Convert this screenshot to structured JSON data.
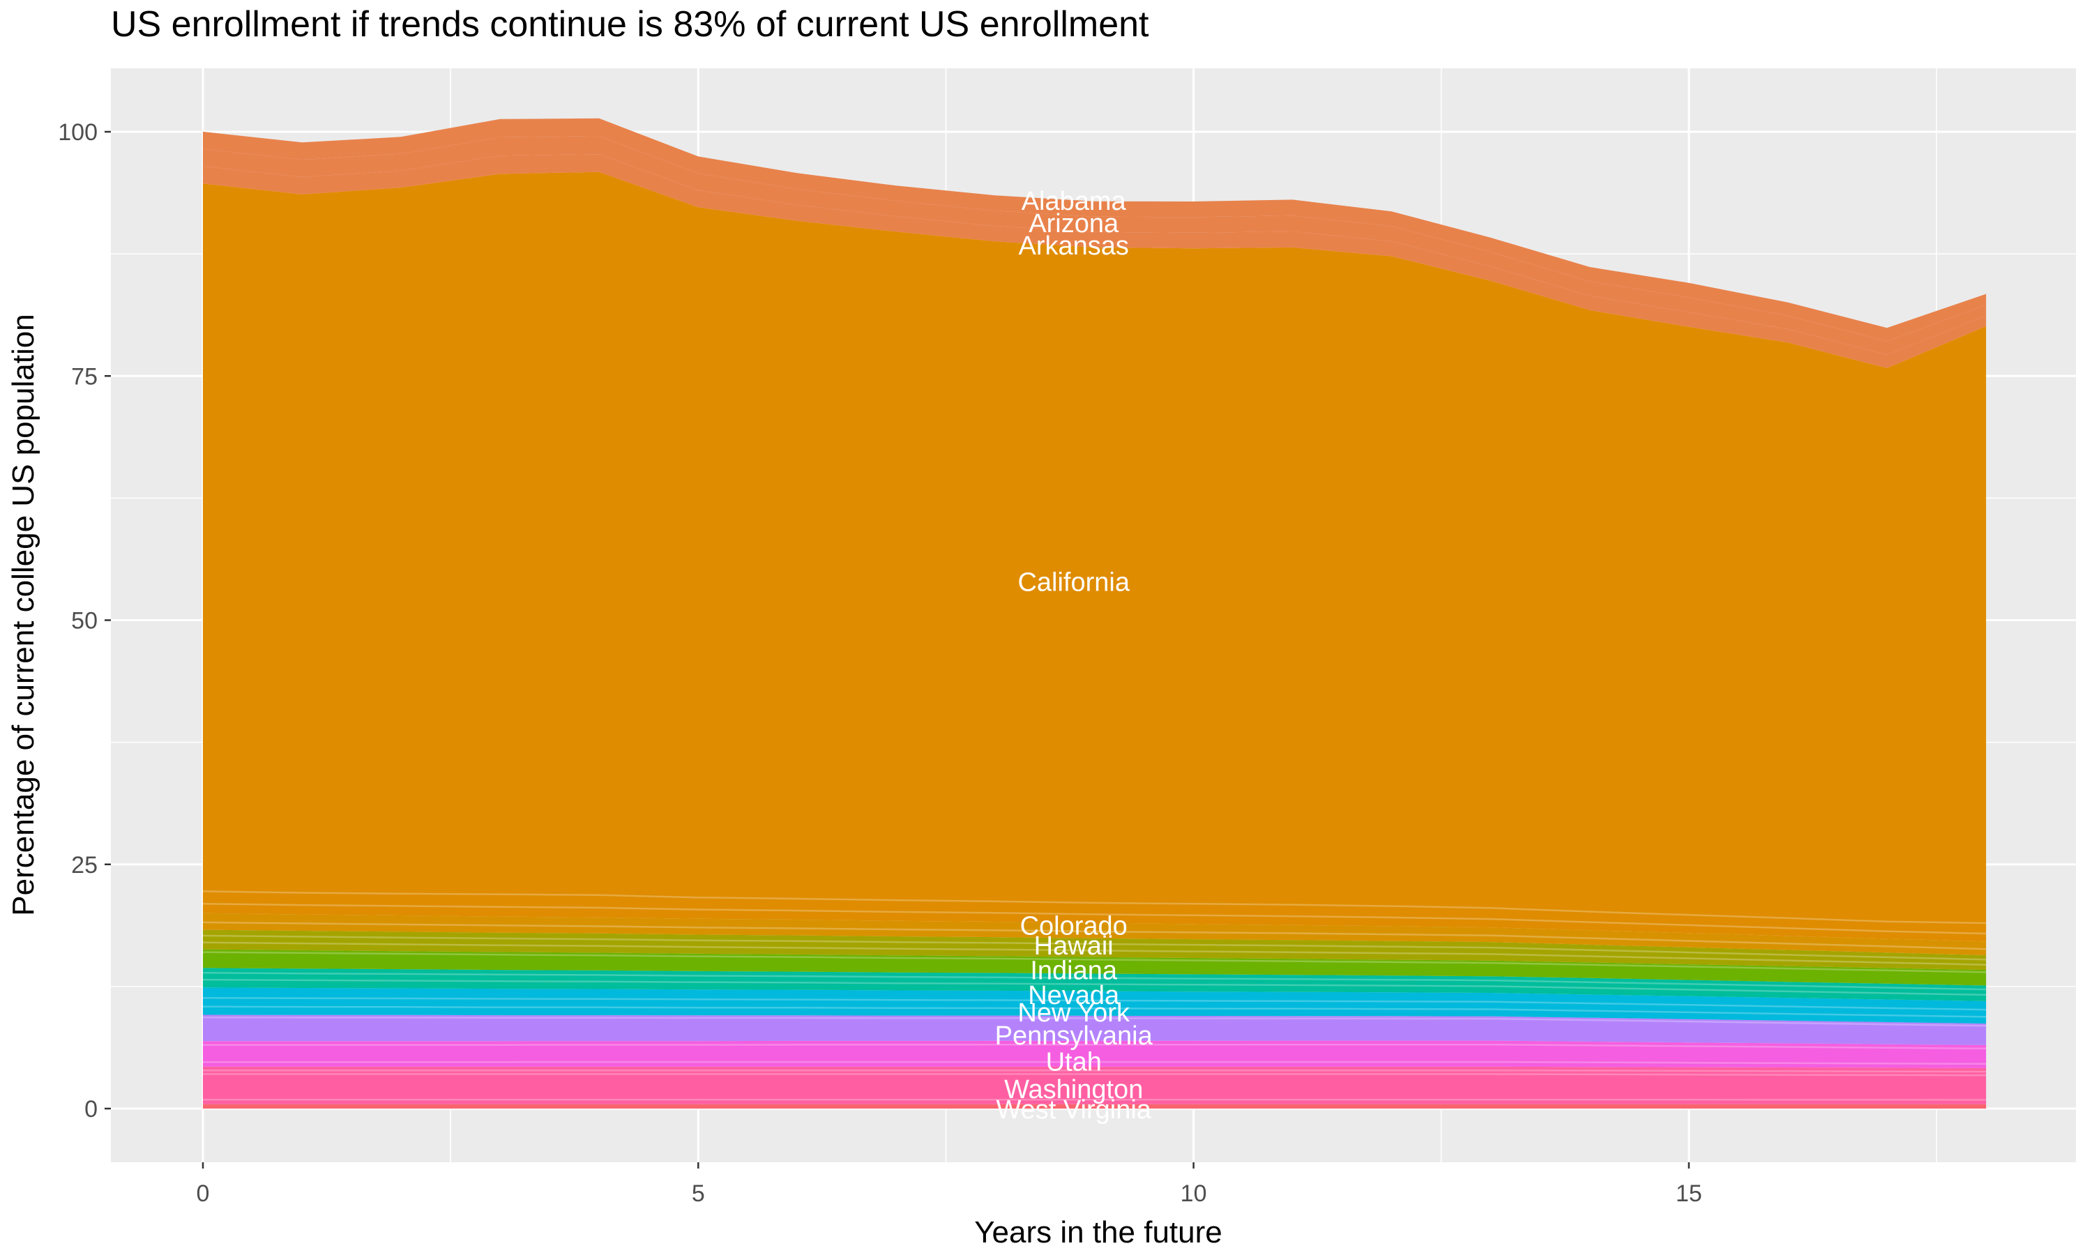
{
  "title": "US enrollment if trends continue is 83% of current US enrollment",
  "chart_data": {
    "type": "area",
    "stacked": true,
    "title": "US enrollment if trends continue is 83% of current US enrollment",
    "xlabel": "Years in the future",
    "ylabel": "Percentage of current college US population",
    "x": [
      0,
      1,
      2,
      3,
      4,
      5,
      6,
      7,
      8,
      9,
      10,
      11,
      12,
      13,
      14,
      15,
      16,
      17,
      18
    ],
    "x_ticks": [
      0,
      5,
      10,
      15
    ],
    "y_ticks": [
      0,
      25,
      50,
      75,
      100
    ],
    "xlim": [
      -0.93,
      18.93
    ],
    "ylim": [
      -5.3,
      106.8
    ],
    "grid": "white major and minor gridlines on gray panel",
    "legend_position": "none",
    "panel_background": "#EBEBEB",
    "gridline_color": "#FFFFFF",
    "label_text_color": "#FFFFFF",
    "total_final_percent": 83,
    "series": [
      {
        "name": "Alabama",
        "color": "#E8824B",
        "values": [
          1.77,
          1.77,
          1.73,
          1.87,
          1.83,
          1.73,
          1.63,
          1.57,
          1.57,
          1.57,
          1.6,
          1.63,
          1.53,
          1.47,
          1.47,
          1.5,
          1.37,
          1.37,
          1.1
        ]
      },
      {
        "name": "Arizona",
        "color": "#E8824B",
        "values": [
          1.77,
          1.77,
          1.73,
          1.87,
          1.83,
          1.73,
          1.63,
          1.57,
          1.57,
          1.57,
          1.6,
          1.63,
          1.53,
          1.47,
          1.47,
          1.5,
          1.37,
          1.37,
          1.1
        ]
      },
      {
        "name": "Arkansas",
        "color": "#E8824B",
        "values": [
          1.77,
          1.77,
          1.73,
          1.87,
          1.83,
          1.73,
          1.63,
          1.57,
          1.57,
          1.57,
          1.6,
          1.63,
          1.53,
          1.47,
          1.47,
          1.5,
          1.37,
          1.37,
          1.1
        ]
      },
      {
        "name": "California",
        "color": "#DF8C00",
        "values": [
          74.7,
          73.72,
          74.52,
          76.03,
          76.31,
          72.85,
          71.54,
          70.55,
          69.64,
          69.18,
          69.17,
          69.37,
          68.59,
          66.2,
          63.48,
          62.06,
          60.74,
          58.42,
          63.0
        ]
      },
      {
        "name": "Colorado",
        "color": "#D89200",
        "values": [
          1.7,
          1.68,
          1.67,
          1.65,
          1.64,
          1.62,
          1.61,
          1.59,
          1.58,
          1.56,
          1.55,
          1.53,
          1.52,
          1.5,
          1.48,
          1.46,
          1.44,
          1.42,
          1.4
        ]
      },
      {
        "name": "Hawaii",
        "color": "#A4A400",
        "values": [
          2.0,
          1.99,
          1.98,
          1.98,
          1.97,
          1.96,
          1.95,
          1.95,
          1.94,
          1.93,
          1.92,
          1.92,
          1.91,
          1.9,
          1.82,
          1.74,
          1.66,
          1.58,
          1.5
        ]
      },
      {
        "name": "Indiana",
        "color": "#6CB200",
        "values": [
          1.9,
          1.88,
          1.85,
          1.83,
          1.81,
          1.78,
          1.76,
          1.74,
          1.72,
          1.69,
          1.67,
          1.65,
          1.62,
          1.6,
          1.6,
          1.6,
          1.6,
          1.6,
          1.6
        ]
      },
      {
        "name": "Nevada",
        "color": "#00BD9B",
        "values": [
          2.0,
          1.98,
          1.95,
          1.93,
          1.91,
          1.88,
          1.86,
          1.84,
          1.82,
          1.79,
          1.77,
          1.75,
          1.72,
          1.7,
          1.68,
          1.66,
          1.64,
          1.62,
          1.6
        ]
      },
      {
        "name": "New York",
        "color": "#00B9DC",
        "values": [
          2.8,
          2.77,
          2.74,
          2.71,
          2.68,
          2.65,
          2.62,
          2.58,
          2.55,
          2.52,
          2.49,
          2.46,
          2.43,
          2.4,
          2.38,
          2.36,
          2.34,
          2.32,
          2.3
        ]
      },
      {
        "name": "Pennsylvania",
        "color": "#B483FC",
        "values": [
          2.7,
          2.68,
          2.67,
          2.65,
          2.64,
          2.62,
          2.61,
          2.59,
          2.58,
          2.56,
          2.55,
          2.53,
          2.52,
          2.5,
          2.44,
          2.38,
          2.32,
          2.26,
          2.2
        ]
      },
      {
        "name": "Utah",
        "color": "#F55EE0",
        "values": [
          2.6,
          2.6,
          2.61,
          2.61,
          2.62,
          2.62,
          2.63,
          2.63,
          2.64,
          2.64,
          2.64,
          2.65,
          2.65,
          2.65,
          2.59,
          2.53,
          2.47,
          2.41,
          2.35
        ]
      },
      {
        "name": "Washington",
        "color": "#FF5FA2",
        "values": [
          3.85,
          3.85,
          3.85,
          3.85,
          3.85,
          3.85,
          3.85,
          3.85,
          3.85,
          3.85,
          3.85,
          3.85,
          3.85,
          3.85,
          3.82,
          3.79,
          3.76,
          3.73,
          3.7
        ]
      },
      {
        "name": "West Virginia",
        "color": "#F8656F",
        "values": [
          0.45,
          0.45,
          0.45,
          0.45,
          0.45,
          0.45,
          0.45,
          0.45,
          0.45,
          0.45,
          0.45,
          0.45,
          0.45,
          0.45,
          0.45,
          0.45,
          0.45,
          0.45,
          0.45
        ]
      }
    ]
  }
}
